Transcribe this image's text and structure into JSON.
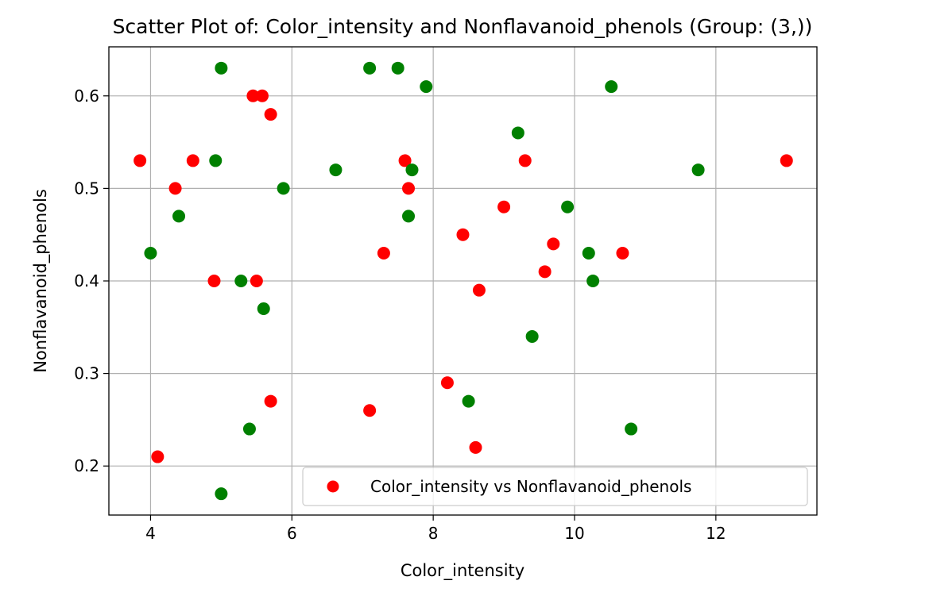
{
  "chart_data": {
    "type": "scatter",
    "title": "Scatter Plot of: Color_intensity and Nonflavanoid_phenols (Group: (3,))",
    "xlabel": "Color_intensity",
    "ylabel": "Nonflavanoid_phenols",
    "xlim": [
      3.41,
      13.43
    ],
    "ylim": [
      0.147,
      0.653
    ],
    "xticks": [
      4,
      6,
      8,
      10,
      12
    ],
    "yticks": [
      0.2,
      0.3,
      0.4,
      0.5,
      0.6
    ],
    "xtick_labels": [
      "4",
      "6",
      "8",
      "10",
      "12"
    ],
    "ytick_labels": [
      "0.2",
      "0.3",
      "0.4",
      "0.5",
      "0.6"
    ],
    "grid": true,
    "legend_position": "lower right",
    "series": [
      {
        "name": "Color_intensity vs Nonflavanoid_phenols",
        "color": "#ff0000",
        "x": [
          3.85,
          4.1,
          4.35,
          4.6,
          4.9,
          5.45,
          5.58,
          5.5,
          5.7,
          5.7,
          7.1,
          7.3,
          7.6,
          7.65,
          8.2,
          8.42,
          8.6,
          8.65,
          9.0,
          9.3,
          9.58,
          9.7,
          10.68,
          13.0
        ],
        "y": [
          0.53,
          0.21,
          0.5,
          0.53,
          0.4,
          0.6,
          0.6,
          0.4,
          0.58,
          0.27,
          0.26,
          0.43,
          0.53,
          0.5,
          0.29,
          0.45,
          0.22,
          0.39,
          0.48,
          0.53,
          0.41,
          0.44,
          0.43,
          0.53
        ]
      },
      {
        "name": "",
        "color": "#008000",
        "x": [
          4.0,
          4.4,
          4.92,
          5.0,
          5.0,
          5.28,
          5.4,
          5.6,
          5.88,
          6.62,
          7.1,
          7.5,
          7.65,
          7.7,
          7.9,
          8.5,
          9.2,
          9.4,
          9.9,
          10.2,
          10.26,
          10.52,
          10.8,
          11.75
        ],
        "y": [
          0.43,
          0.47,
          0.53,
          0.63,
          0.17,
          0.4,
          0.24,
          0.37,
          0.5,
          0.52,
          0.63,
          0.63,
          0.47,
          0.52,
          0.61,
          0.27,
          0.56,
          0.34,
          0.48,
          0.43,
          0.4,
          0.61,
          0.24,
          0.52
        ]
      }
    ]
  }
}
